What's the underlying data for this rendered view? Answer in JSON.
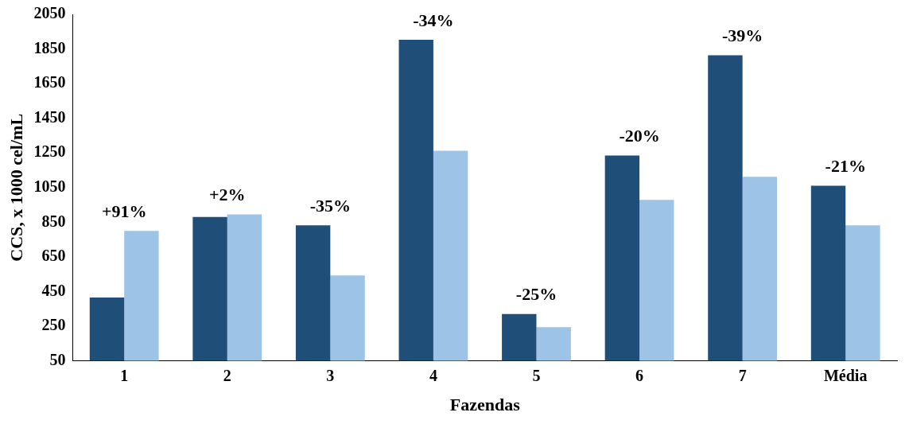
{
  "chart_data": {
    "type": "bar",
    "xlabel": "Fazendas",
    "ylabel": "CCS, x 1000 cel/mL",
    "categories": [
      "1",
      "2",
      "3",
      "4",
      "5",
      "6",
      "7",
      "Média"
    ],
    "series": [
      {
        "color": "#1f4e79",
        "values": [
          415,
          880,
          832,
          1903,
          320,
          1235,
          1813,
          1060
        ]
      },
      {
        "color": "#9dc3e6",
        "values": [
          800,
          895,
          543,
          1263,
          244,
          979,
          1112,
          832
        ]
      }
    ],
    "ylim": [
      50,
      2050
    ],
    "yticks": [
      50,
      250,
      450,
      650,
      850,
      1050,
      1250,
      1450,
      1650,
      1850,
      2050
    ],
    "grid": false,
    "legend": false,
    "annotations": [
      "+91%",
      "+2%",
      "-35%",
      "-34%",
      "-25%",
      "-20%",
      "-39%",
      "-21%"
    ]
  }
}
